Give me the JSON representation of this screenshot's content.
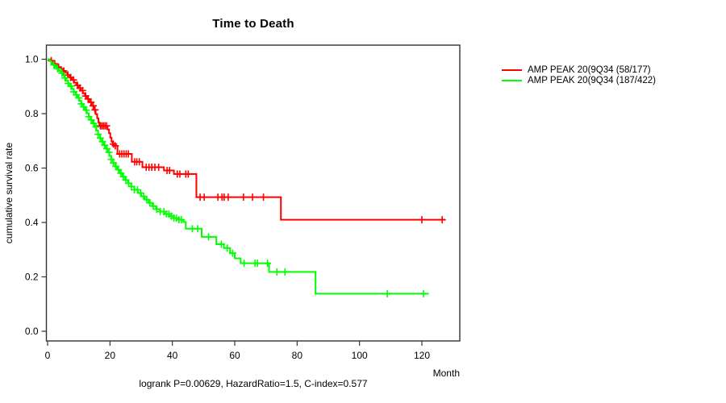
{
  "title": "Time to Death",
  "x_axis": {
    "label": "Month",
    "ticks": [
      0,
      20,
      40,
      60,
      80,
      100,
      120
    ]
  },
  "y_axis": {
    "label": "cumulative survival rate",
    "ticks": [
      0.0,
      0.2,
      0.4,
      0.6,
      0.8,
      1.0
    ]
  },
  "annotation": "logrank P=0.00629, HazardRatio=1.5, C-index=0.577",
  "legend": [
    {
      "label": "AMP PEAK 20(9Q34 (58/177)",
      "color": "#ff0000"
    },
    {
      "label": "AMP PEAK 20(9Q34 (187/422)",
      "color": "#00ff00"
    }
  ],
  "chart_data": {
    "type": "line",
    "subtype": "kaplan-meier-step",
    "title": "Time to Death",
    "xlabel": "Month",
    "ylabel": "cumulative survival rate",
    "xlim": [
      0,
      132
    ],
    "ylim": [
      0,
      1.04
    ],
    "grid": false,
    "legend_position": "right-outside",
    "stats": {
      "logrank_p": 0.00629,
      "hazard_ratio": 1.5,
      "c_index": 0.577
    },
    "series": [
      {
        "name": "AMP PEAK 20(9Q34 (58/177)",
        "color": "#ff0000",
        "end_month": 127.5,
        "points": [
          [
            0,
            1.0
          ],
          [
            0.7,
            0.995
          ],
          [
            1.4,
            0.989
          ],
          [
            2.1,
            0.983
          ],
          [
            2.8,
            0.977
          ],
          [
            3.5,
            0.971
          ],
          [
            4.2,
            0.965
          ],
          [
            5.0,
            0.957
          ],
          [
            5.7,
            0.95
          ],
          [
            6.4,
            0.942
          ],
          [
            7.1,
            0.933
          ],
          [
            7.8,
            0.924
          ],
          [
            8.5,
            0.914
          ],
          [
            9.2,
            0.904
          ],
          [
            9.9,
            0.894
          ],
          [
            10.6,
            0.885
          ],
          [
            11.3,
            0.875
          ],
          [
            12.0,
            0.865
          ],
          [
            12.7,
            0.854
          ],
          [
            13.4,
            0.842
          ],
          [
            14.1,
            0.829
          ],
          [
            14.8,
            0.814
          ],
          [
            15.4,
            0.798
          ],
          [
            15.9,
            0.783
          ],
          [
            16.3,
            0.768
          ],
          [
            16.6,
            0.755
          ],
          [
            19.2,
            0.742
          ],
          [
            19.7,
            0.728
          ],
          [
            20.1,
            0.712
          ],
          [
            20.5,
            0.697
          ],
          [
            20.9,
            0.688
          ],
          [
            21.4,
            0.682
          ],
          [
            22.4,
            0.652
          ],
          [
            27.0,
            0.623
          ],
          [
            30.4,
            0.603
          ],
          [
            37.3,
            0.591
          ],
          [
            40.5,
            0.578
          ],
          [
            47.7,
            0.493
          ],
          [
            74.8,
            0.41
          ]
        ],
        "censor_months": [
          1.2,
          2.3,
          3.5,
          5.2,
          6.5,
          7.4,
          8.3,
          9.6,
          10.4,
          11.2,
          12.2,
          13.0,
          13.9,
          14.6,
          15.2,
          16.9,
          17.4,
          17.9,
          18.4,
          18.9,
          21.1,
          21.7,
          23.1,
          23.8,
          24.5,
          25.2,
          25.9,
          27.9,
          28.6,
          29.4,
          31.6,
          32.5,
          33.4,
          34.4,
          35.6,
          38.3,
          39.1,
          41.6,
          42.4,
          44.3,
          45.1,
          48.9,
          50.2,
          54.6,
          55.9,
          56.6,
          57.9,
          62.8,
          65.7,
          69.2,
          120.0,
          126.5
        ]
      },
      {
        "name": "AMP PEAK 20(9Q34 (187/422)",
        "color": "#00ff00",
        "end_month": 122.2,
        "points": [
          [
            0,
            1.0
          ],
          [
            0.6,
            0.993
          ],
          [
            1.2,
            0.986
          ],
          [
            1.8,
            0.979
          ],
          [
            2.4,
            0.972
          ],
          [
            3.0,
            0.965
          ],
          [
            3.6,
            0.957
          ],
          [
            4.2,
            0.949
          ],
          [
            4.8,
            0.94
          ],
          [
            5.4,
            0.931
          ],
          [
            6.0,
            0.921
          ],
          [
            6.6,
            0.911
          ],
          [
            7.2,
            0.901
          ],
          [
            7.8,
            0.891
          ],
          [
            8.4,
            0.88
          ],
          [
            9.0,
            0.869
          ],
          [
            9.6,
            0.858
          ],
          [
            10.2,
            0.847
          ],
          [
            10.8,
            0.836
          ],
          [
            11.4,
            0.825
          ],
          [
            12.0,
            0.813
          ],
          [
            12.6,
            0.801
          ],
          [
            13.2,
            0.789
          ],
          [
            13.8,
            0.777
          ],
          [
            14.4,
            0.764
          ],
          [
            15.0,
            0.751
          ],
          [
            15.6,
            0.738
          ],
          [
            16.2,
            0.724
          ],
          [
            16.8,
            0.71
          ],
          [
            17.4,
            0.697
          ],
          [
            18.0,
            0.684
          ],
          [
            18.6,
            0.671
          ],
          [
            19.2,
            0.658
          ],
          [
            19.8,
            0.645
          ],
          [
            20.4,
            0.632
          ],
          [
            21.0,
            0.619
          ],
          [
            21.7,
            0.606
          ],
          [
            22.4,
            0.594
          ],
          [
            23.2,
            0.581
          ],
          [
            24.0,
            0.568
          ],
          [
            24.9,
            0.556
          ],
          [
            25.8,
            0.544
          ],
          [
            26.8,
            0.532
          ],
          [
            27.8,
            0.52
          ],
          [
            28.9,
            0.508
          ],
          [
            30.0,
            0.496
          ],
          [
            31.2,
            0.484
          ],
          [
            32.4,
            0.472
          ],
          [
            33.6,
            0.46
          ],
          [
            34.8,
            0.449
          ],
          [
            36.0,
            0.44
          ],
          [
            37.5,
            0.431
          ],
          [
            39.0,
            0.423
          ],
          [
            40.5,
            0.416
          ],
          [
            42.0,
            0.41
          ],
          [
            43.5,
            0.402
          ],
          [
            44.3,
            0.377
          ],
          [
            49.4,
            0.347
          ],
          [
            54.1,
            0.32
          ],
          [
            56.5,
            0.306
          ],
          [
            58.5,
            0.287
          ],
          [
            60.0,
            0.268
          ],
          [
            61.9,
            0.25
          ],
          [
            71.0,
            0.218
          ],
          [
            85.9,
            0.138
          ]
        ],
        "censor_months": [
          2.0,
          3.2,
          4.6,
          5.6,
          6.6,
          7.5,
          8.4,
          9.2,
          10.0,
          10.8,
          11.6,
          12.4,
          13.2,
          14.0,
          14.8,
          15.5,
          16.2,
          16.9,
          17.6,
          18.3,
          19.0,
          19.7,
          20.4,
          21.1,
          21.9,
          22.7,
          23.5,
          24.3,
          25.1,
          26.0,
          26.9,
          27.8,
          28.8,
          29.8,
          30.8,
          31.8,
          32.8,
          33.9,
          35.0,
          36.1,
          37.3,
          38.1,
          38.9,
          39.7,
          40.5,
          41.3,
          42.1,
          42.9,
          46.4,
          48.1,
          51.6,
          55.7,
          57.6,
          59.3,
          63.0,
          66.5,
          67.3,
          70.5,
          73.5,
          76.1,
          108.9,
          120.5
        ]
      }
    ]
  }
}
